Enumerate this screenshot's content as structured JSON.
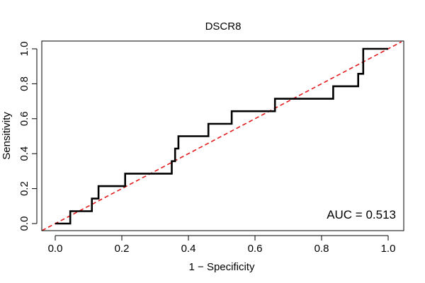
{
  "chart_data": {
    "type": "line",
    "title": "DSCR8",
    "xlabel": "1 − Specificity",
    "ylabel": "Sensitivity",
    "xlim": [
      0,
      1
    ],
    "ylim": [
      0,
      1
    ],
    "xticks": [
      "0.0",
      "0.2",
      "0.4",
      "0.6",
      "0.8",
      "1.0"
    ],
    "yticks": [
      "0.0",
      "0.2",
      "0.4",
      "0.6",
      "0.8",
      "1.0"
    ],
    "annotation": "AUC = 0.513",
    "grid": false,
    "series": [
      {
        "name": "ROC curve",
        "color": "#000000",
        "style": "step",
        "x": [
          0.0,
          0.045,
          0.045,
          0.11,
          0.11,
          0.125,
          0.125,
          0.13,
          0.13,
          0.21,
          0.21,
          0.35,
          0.35,
          0.36,
          0.36,
          0.37,
          0.37,
          0.375,
          0.375,
          0.46,
          0.46,
          0.53,
          0.53,
          0.66,
          0.66,
          0.835,
          0.835,
          0.91,
          0.91,
          0.925,
          0.925,
          1.0
        ],
        "y": [
          0.0,
          0.0,
          0.071,
          0.071,
          0.143,
          0.143,
          0.143,
          0.143,
          0.214,
          0.214,
          0.286,
          0.286,
          0.357,
          0.357,
          0.429,
          0.429,
          0.5,
          0.5,
          0.5,
          0.5,
          0.571,
          0.571,
          0.643,
          0.643,
          0.714,
          0.714,
          0.786,
          0.786,
          0.857,
          0.857,
          1.0,
          1.0
        ]
      },
      {
        "name": "Reference line",
        "color": "#e31a1c",
        "style": "dashed",
        "x": [
          -0.04,
          1.04
        ],
        "y": [
          -0.04,
          1.04
        ]
      }
    ]
  }
}
